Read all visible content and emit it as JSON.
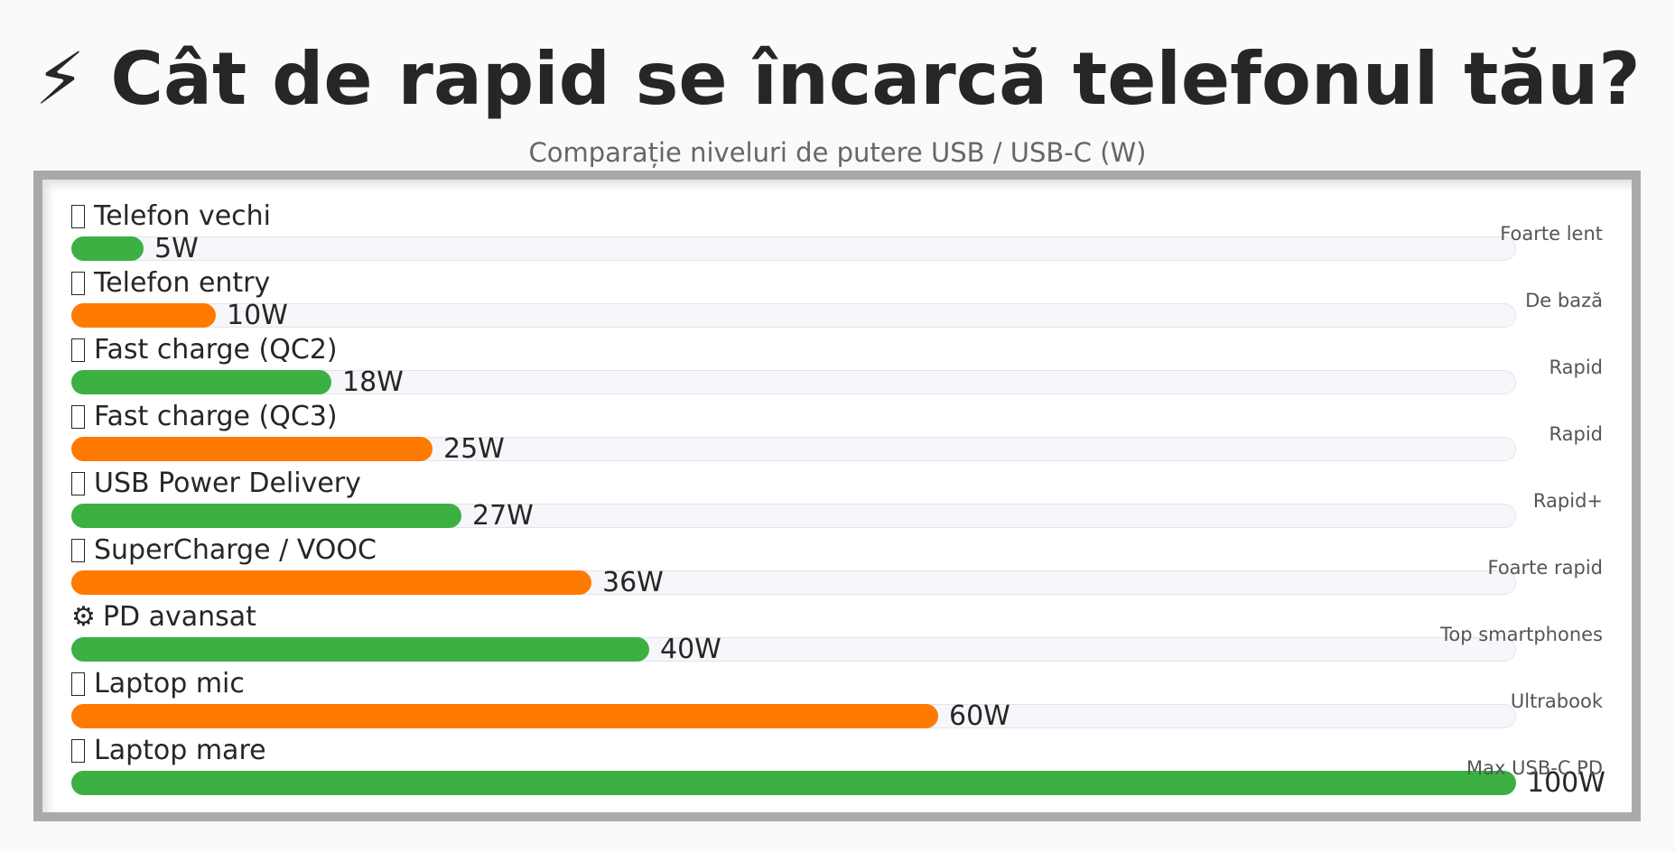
{
  "title": "⚡ Cât de rapid se încarcă telefonul tău?",
  "subtitle": "Comparație niveluri de putere USB / USB-C (W)",
  "chart_data": {
    "type": "bar",
    "orientation": "horizontal",
    "xlim": [
      0,
      100
    ],
    "unit": "W",
    "colors": [
      "#3cb043",
      "#ff7a00"
    ],
    "track_color": "#f5f7fa",
    "categories": [
      "Telefon vechi",
      "Telefon entry",
      "Fast charge (QC2)",
      "Fast charge (QC3)",
      "USB Power Delivery",
      "SuperCharge / VOOC",
      "PD avansat",
      "Laptop mic",
      "Laptop mare"
    ],
    "icons": [
      "missing-glyph-icon",
      "missing-glyph-icon",
      "missing-glyph-icon",
      "missing-glyph-icon",
      "missing-glyph-icon",
      "missing-glyph-icon",
      "gear-icon",
      "missing-glyph-icon",
      "missing-glyph-icon"
    ],
    "values": [
      5,
      10,
      18,
      25,
      27,
      36,
      40,
      60,
      100
    ],
    "value_labels": [
      "5W",
      "10W",
      "18W",
      "25W",
      "27W",
      "36W",
      "40W",
      "60W",
      "100W"
    ],
    "tags": [
      "Foarte lent",
      "De bază",
      "Rapid",
      "Rapid",
      "Rapid+",
      "Foarte rapid",
      "Top smartphones",
      "Ultrabook",
      "Max USB-C PD"
    ]
  }
}
